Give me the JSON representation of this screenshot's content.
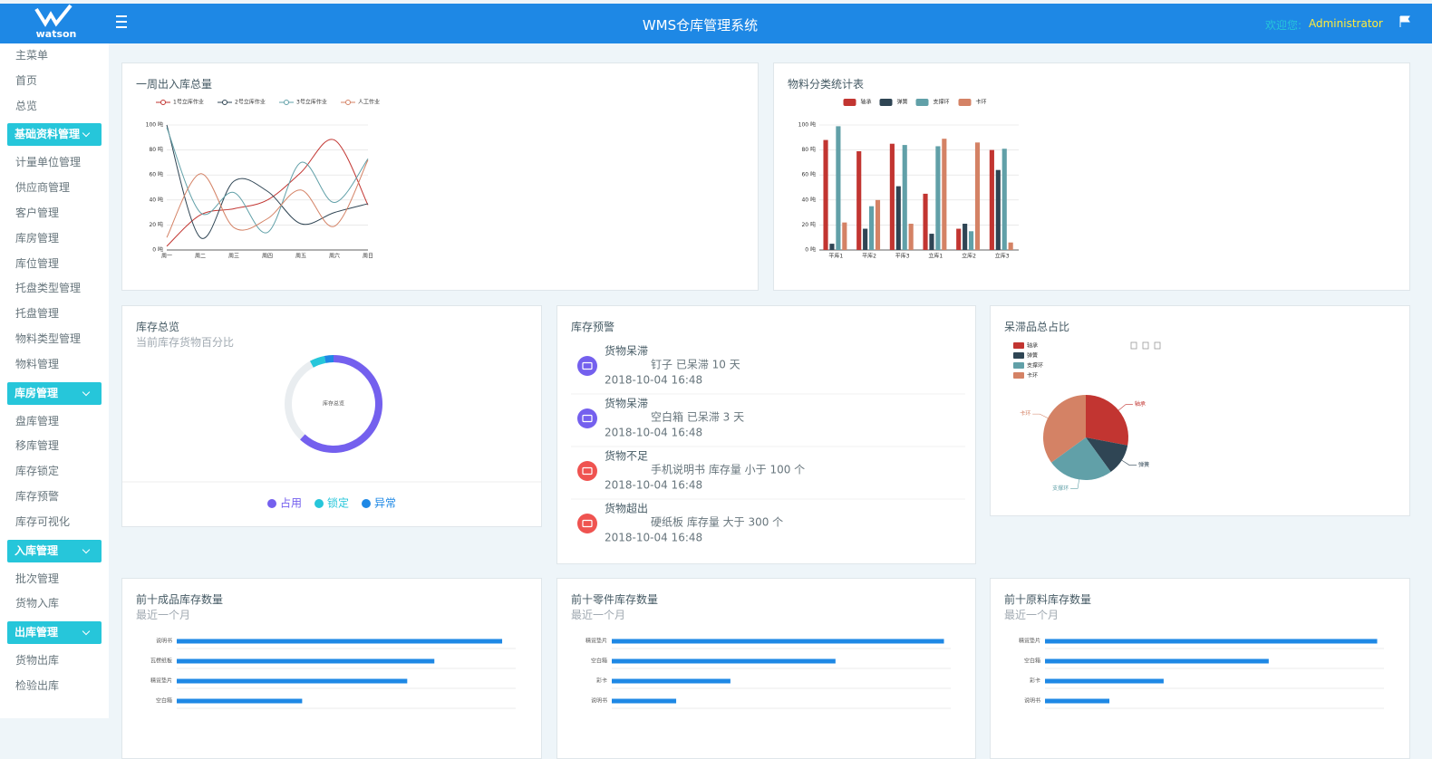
{
  "header": {
    "logo": "watson",
    "title": "WMS仓库管理系统",
    "welcome": "欢迎您:",
    "user": "Administrator"
  },
  "sidebar": [
    {
      "title": "主菜单",
      "items": [
        "首页",
        "总览"
      ]
    },
    {
      "title": "基础资料管理",
      "items": [
        "计量单位管理",
        "供应商管理",
        "客户管理",
        "库房管理",
        "库位管理",
        "托盘类型管理",
        "托盘管理",
        "物料类型管理",
        "物料管理"
      ]
    },
    {
      "title": "库房管理",
      "items": [
        "盘库管理",
        "移库管理",
        "库存锁定",
        "库存预警",
        "库存可视化"
      ]
    },
    {
      "title": "入库管理",
      "items": [
        "批次管理",
        "货物入库"
      ]
    },
    {
      "title": "出库管理",
      "items": [
        "货物出库",
        "检验出库"
      ]
    }
  ],
  "alerts": {
    "title": "库存预警",
    "items": [
      {
        "title": "货物呆滞",
        "text": "钉子 已呆滞 10 天",
        "time": "2018-10-04 16:48",
        "color": "#7460ee"
      },
      {
        "title": "货物呆滞",
        "text": "空白箱 已呆滞 3 天",
        "time": "2018-10-04 16:48",
        "color": "#7460ee"
      },
      {
        "title": "货物不足",
        "text": "手机说明书 库存量 小于 100 个",
        "time": "2018-10-04 16:48",
        "color": "#ef5350"
      },
      {
        "title": "货物超出",
        "text": "硬纸板 库存量 大于 300 个",
        "time": "2018-10-04 16:48",
        "color": "#ef5350"
      }
    ]
  },
  "chart_data": [
    {
      "type": "line",
      "title": "一周出入库总量",
      "smooth": true,
      "grid": true,
      "categories": [
        "周一",
        "周二",
        "周三",
        "周四",
        "周五",
        "周六",
        "周日"
      ],
      "series": [
        {
          "name": "1号立库作业",
          "color": "#c23531",
          "values": [
            3,
            28,
            33,
            40,
            62,
            88,
            36
          ]
        },
        {
          "name": "2号立库作业",
          "color": "#2f4554",
          "values": [
            100,
            10,
            55,
            47,
            21,
            30,
            37
          ]
        },
        {
          "name": "3号立库作业",
          "color": "#61a0a8",
          "values": [
            98,
            30,
            46,
            14,
            70,
            38,
            73
          ]
        },
        {
          "name": "人工作业",
          "color": "#d48265",
          "values": [
            10,
            61,
            18,
            25,
            48,
            19,
            72
          ]
        }
      ],
      "ylim": [
        0,
        100
      ],
      "yticks": [
        {
          "value": 0,
          "label": "0 吨"
        },
        {
          "value": 20,
          "label": "20 吨"
        },
        {
          "value": 40,
          "label": "40 吨"
        },
        {
          "value": 60,
          "label": "60 吨"
        },
        {
          "value": 80,
          "label": "80 吨"
        },
        {
          "value": 100,
          "label": "100 吨"
        }
      ]
    },
    {
      "type": "bar",
      "title": "物料分类统计表",
      "grid": true,
      "categories": [
        "平库1",
        "平库2",
        "平库3",
        "立库1",
        "立库2",
        "立库3"
      ],
      "series": [
        {
          "name": "轴承",
          "color": "#c23531",
          "values": [
            88,
            79,
            85,
            45,
            17,
            80
          ]
        },
        {
          "name": "弹簧",
          "color": "#2f4554",
          "values": [
            5,
            17,
            51,
            13,
            21,
            64
          ]
        },
        {
          "name": "支撑环",
          "color": "#61a0a8",
          "values": [
            99,
            35,
            84,
            83,
            15,
            81
          ]
        },
        {
          "name": "卡环",
          "color": "#d48265",
          "values": [
            22,
            40,
            21,
            89,
            86,
            6
          ]
        }
      ],
      "ylim": [
        0,
        100
      ],
      "yticks": [
        {
          "value": 0,
          "label": "0 吨"
        },
        {
          "value": 20,
          "label": "20 吨"
        },
        {
          "value": 40,
          "label": "40 吨"
        },
        {
          "value": 60,
          "label": "60 吨"
        },
        {
          "value": 80,
          "label": "80 吨"
        },
        {
          "value": 100,
          "label": "100 吨"
        }
      ]
    },
    {
      "type": "doughnut",
      "title": "库存总览",
      "subtitle": "当前库存货物百分比",
      "center_label": "库存总览",
      "categories": [
        "占用",
        "锁定",
        "异常"
      ],
      "values": [
        62,
        5,
        3
      ],
      "colors": [
        "#7460ee",
        "#26c6da",
        "#1e88e5"
      ]
    },
    {
      "type": "pie",
      "title": "呆滞品总占比",
      "categories": [
        "轴承",
        "弹簧",
        "支撑环",
        "卡环"
      ],
      "values": [
        28,
        12,
        25,
        35
      ],
      "colors": [
        "#c23531",
        "#2f4554",
        "#61a0a8",
        "#d48265"
      ]
    },
    {
      "type": "barh",
      "title": "前十成品库存数量",
      "subtitle": "最近一个月",
      "color": "#1e88e5",
      "xlim": [
        0,
        100
      ],
      "categories": [
        "说明书",
        "瓦楞纸板",
        "精贸垫片",
        "空白箱"
      ],
      "values": [
        96,
        76,
        68,
        37
      ]
    },
    {
      "type": "barh",
      "title": "前十零件库存数量",
      "subtitle": "最近一个月",
      "color": "#1e88e5",
      "xlim": [
        0,
        100
      ],
      "categories": [
        "精贸垫片",
        "空白箱",
        "彩卡",
        "说明书"
      ],
      "values": [
        98,
        66,
        35,
        19
      ]
    },
    {
      "type": "barh",
      "title": "前十原料库存数量",
      "subtitle": "最近一个月",
      "color": "#1e88e5",
      "xlim": [
        0,
        100
      ],
      "categories": [
        "精贸垫片",
        "空白箱",
        "彩卡",
        "说明书"
      ],
      "values": [
        98,
        66,
        35,
        19
      ]
    }
  ]
}
